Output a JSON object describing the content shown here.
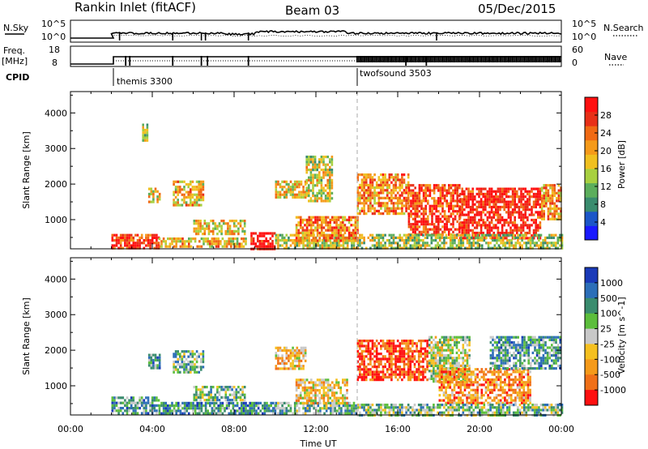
{
  "header": {
    "radar": "Rankin Inlet (fitACF)",
    "beam": "Beam 03",
    "date": "05/Dec/2015"
  },
  "top_panels": {
    "nsky_label": "N.Sky",
    "nsearch_label": "N.Search",
    "nsky_ticks": [
      "10^5",
      "10^0"
    ],
    "nsearch_ticks": [
      "10^5",
      "10^0"
    ],
    "freq_label_1": "Freq.",
    "freq_label_2": "[MHz]",
    "freq_ticks": [
      "18",
      "8"
    ],
    "nave_label": "Nave",
    "nave_ticks": [
      "60",
      "0"
    ],
    "cpid_label": "CPID",
    "cpid_segments": [
      {
        "name": "themis 3300",
        "start": 2.0
      },
      {
        "name": "twofsound 3503",
        "start": 14.0
      }
    ]
  },
  "chart_data": [
    {
      "type": "heatmap",
      "title": "",
      "xlabel": "",
      "ylabel": "Slant Range [km]",
      "xlim": [
        0,
        24
      ],
      "ylim": [
        180,
        4600
      ],
      "y_ticks": [
        1000,
        2000,
        3000,
        4000
      ],
      "colorbar": {
        "label": "Power [dB]",
        "ticks": [
          "4",
          "8",
          "12",
          "16",
          "20",
          "24",
          "28"
        ],
        "colors": [
          "#1a1aff",
          "#1c56c8",
          "#3a8c6e",
          "#5cae5c",
          "#a8d040",
          "#f0c020",
          "#f59a1a",
          "#f06a14",
          "#e83018",
          "#ff1010"
        ]
      },
      "regions": [
        {
          "t0": 2.0,
          "t1": 4.3,
          "r0": 200,
          "r1": 600,
          "level": 0.85
        },
        {
          "t0": 4.3,
          "t1": 8.6,
          "r0": 220,
          "r1": 500,
          "level": 0.6
        },
        {
          "t0": 8.8,
          "t1": 10.0,
          "r0": 200,
          "r1": 650,
          "level": 0.95
        },
        {
          "t0": 10.0,
          "t1": 14.0,
          "r0": 220,
          "r1": 600,
          "level": 0.5
        },
        {
          "t0": 3.5,
          "t1": 3.8,
          "r0": 3200,
          "r1": 3700,
          "level": 0.45
        },
        {
          "t0": 3.8,
          "t1": 4.4,
          "r0": 1500,
          "r1": 1900,
          "level": 0.55
        },
        {
          "t0": 5.0,
          "t1": 6.5,
          "r0": 1400,
          "r1": 2100,
          "level": 0.6
        },
        {
          "t0": 6.0,
          "t1": 8.5,
          "r0": 600,
          "r1": 1000,
          "level": 0.55
        },
        {
          "t0": 10.0,
          "t1": 11.5,
          "r0": 1600,
          "r1": 2100,
          "level": 0.55
        },
        {
          "t0": 11.5,
          "t1": 12.8,
          "r0": 1500,
          "r1": 2800,
          "level": 0.5
        },
        {
          "t0": 11.0,
          "t1": 14.0,
          "r0": 400,
          "r1": 1100,
          "level": 0.7
        },
        {
          "t0": 14.0,
          "t1": 16.5,
          "r0": 1200,
          "r1": 2300,
          "level": 0.7
        },
        {
          "t0": 16.5,
          "t1": 19.0,
          "r0": 600,
          "r1": 2000,
          "level": 0.85
        },
        {
          "t0": 19.0,
          "t1": 23.0,
          "r0": 500,
          "r1": 1900,
          "level": 0.92
        },
        {
          "t0": 23.0,
          "t1": 24.0,
          "r0": 1000,
          "r1": 2000,
          "level": 0.65
        },
        {
          "t0": 14.0,
          "t1": 24.0,
          "r0": 200,
          "r1": 600,
          "level": 0.45
        }
      ]
    },
    {
      "type": "heatmap",
      "title": "",
      "xlabel": "Time UT",
      "ylabel": "Slant Range [km]",
      "xlim": [
        0,
        24
      ],
      "ylim": [
        180,
        4600
      ],
      "x_ticks": [
        "00:00",
        "04:00",
        "08:00",
        "12:00",
        "16:00",
        "20:00",
        "00:00"
      ],
      "y_ticks": [
        1000,
        2000,
        3000,
        4000
      ],
      "colorbar": {
        "label": "Velocity [m s^-1]",
        "ticks": [
          "1000",
          "500",
          "100",
          "25",
          "-25",
          "-100",
          "-500",
          "-1000"
        ],
        "colors": [
          "#1a3ab8",
          "#2c6eb8",
          "#3a8c6e",
          "#5cbe3c",
          "#c8c8c8",
          "#f5c020",
          "#f59a1a",
          "#f07018",
          "#ff1010"
        ]
      },
      "regions": [
        {
          "t0": 2.0,
          "t1": 4.3,
          "r0": 200,
          "r1": 700,
          "level": 0.3
        },
        {
          "t0": 4.3,
          "t1": 10.0,
          "r0": 200,
          "r1": 550,
          "level": 0.25
        },
        {
          "t0": 10.0,
          "t1": 14.0,
          "r0": 200,
          "r1": 550,
          "level": 0.35
        },
        {
          "t0": 3.8,
          "t1": 4.4,
          "r0": 1500,
          "r1": 1900,
          "level": 0.3
        },
        {
          "t0": 5.0,
          "t1": 6.5,
          "r0": 1400,
          "r1": 2000,
          "level": 0.35
        },
        {
          "t0": 6.0,
          "t1": 8.5,
          "r0": 600,
          "r1": 1000,
          "level": 0.4
        },
        {
          "t0": 10.0,
          "t1": 11.5,
          "r0": 1500,
          "r1": 2100,
          "level": 0.65
        },
        {
          "t0": 11.0,
          "t1": 13.5,
          "r0": 500,
          "r1": 1200,
          "level": 0.6
        },
        {
          "t0": 14.0,
          "t1": 17.5,
          "r0": 1200,
          "r1": 2300,
          "level": 0.9
        },
        {
          "t0": 17.5,
          "t1": 19.5,
          "r0": 1100,
          "r1": 2400,
          "level": 0.5
        },
        {
          "t0": 18.0,
          "t1": 22.5,
          "r0": 500,
          "r1": 1500,
          "level": 0.75
        },
        {
          "t0": 20.5,
          "t1": 24.0,
          "r0": 1500,
          "r1": 2400,
          "level": 0.3
        },
        {
          "t0": 14.0,
          "t1": 24.0,
          "r0": 200,
          "r1": 500,
          "level": 0.4
        }
      ]
    }
  ]
}
